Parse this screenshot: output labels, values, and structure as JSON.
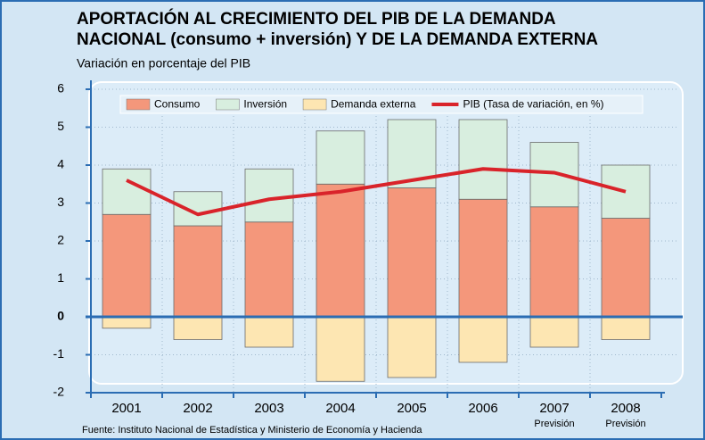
{
  "chart_data": {
    "type": "stacked_bar_line",
    "title": [
      "APORTACIÓN AL CRECIMIENTO DEL PIB DE LA DEMANDA",
      "NACIONAL (consumo + inversión) Y DE LA DEMANDA EXTERNA"
    ],
    "subtitle": "Variación en porcentaje del PIB",
    "source": "Fuente: Instituto Nacional de Estadística y Ministerio de Economía y Hacienda",
    "categories": [
      "2001",
      "2002",
      "2003",
      "2004",
      "2005",
      "2006",
      "2007",
      "2008"
    ],
    "category_notes": [
      null,
      null,
      null,
      null,
      null,
      null,
      "Previsión",
      "Previsión"
    ],
    "series": [
      {
        "name": "Consumo",
        "color": "#f4977b",
        "kind": "bar",
        "values": [
          2.7,
          2.4,
          2.5,
          3.5,
          3.4,
          3.1,
          2.9,
          2.6
        ]
      },
      {
        "name": "Inversión",
        "color": "#d8eedf",
        "kind": "bar",
        "values": [
          1.2,
          0.9,
          1.4,
          1.4,
          1.8,
          2.1,
          1.7,
          1.4
        ]
      },
      {
        "name": "Demanda externa",
        "color": "#fde6b2",
        "kind": "bar",
        "values": [
          -0.3,
          -0.6,
          -0.8,
          -1.7,
          -1.6,
          -1.2,
          -0.8,
          -0.6
        ]
      },
      {
        "name": "PIB (Tasa de variación, en %)",
        "color": "#d9232a",
        "kind": "line",
        "values": [
          3.6,
          2.7,
          3.1,
          3.3,
          3.6,
          3.9,
          3.8,
          3.3
        ]
      }
    ],
    "ylim": [
      -2,
      6
    ],
    "yticks": [
      -2,
      -1,
      0,
      1,
      2,
      3,
      4,
      5,
      6
    ],
    "grid": true,
    "legend": "top"
  }
}
